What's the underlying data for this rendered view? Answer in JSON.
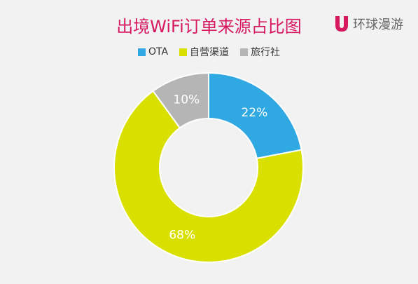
{
  "header": {
    "title": "出境WiFi订单来源占比图",
    "brand_name": "环球漫游",
    "brand_icon": "u-logo-icon",
    "brand_color": "#d6185f"
  },
  "chart_data": {
    "type": "pie",
    "categories": [
      "OTA",
      "自营渠道",
      "旅行社"
    ],
    "values": [
      22,
      68,
      10
    ],
    "value_labels": [
      "22%",
      "68%",
      "10%"
    ],
    "colors": [
      "#30a9e3",
      "#d9e000",
      "#b5b5b5"
    ],
    "legend_position": "top-center",
    "donut": true
  }
}
